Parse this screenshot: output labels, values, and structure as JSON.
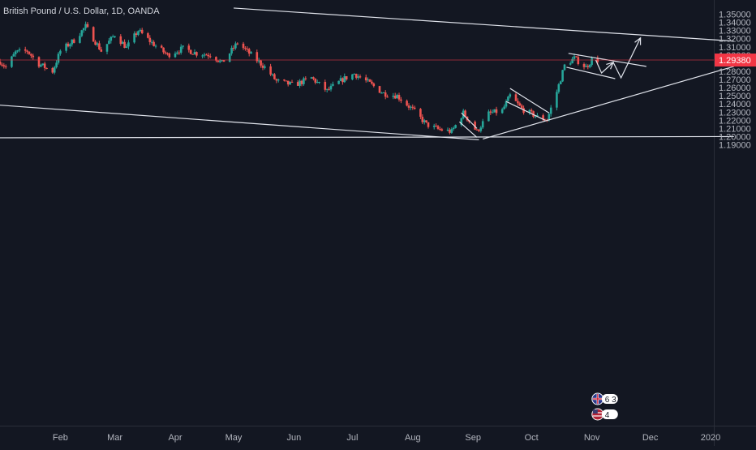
{
  "header": {
    "title": "British Pound / U.S. Dollar, 1D, OANDA"
  },
  "price_axis": {
    "ticks": [
      "1.35000",
      "1.34000",
      "1.33000",
      "1.32000",
      "1.31000",
      "1.30000",
      "1.29000",
      "1.28000",
      "1.27000",
      "1.26000",
      "1.25000",
      "1.24000",
      "1.23000",
      "1.22000",
      "1.21000",
      "1.20000",
      "1.19000"
    ]
  },
  "time_axis": {
    "ticks": [
      "Feb",
      "Mar",
      "Apr",
      "May",
      "Jun",
      "Jul",
      "Aug",
      "Sep",
      "Oct",
      "Nov",
      "Dec",
      "2020"
    ]
  },
  "last_price": {
    "label": "1.29380",
    "value": 1.2938
  },
  "events": [
    {
      "flag": "uk-flag-icon",
      "count": "6 3"
    },
    {
      "flag": "us-flag-icon",
      "count": "4"
    }
  ],
  "colors": {
    "background": "#131722",
    "up": "#26a69a",
    "down": "#ef5350",
    "drawing": "#e0e3eb",
    "last_price": "#f23645"
  },
  "chart_data": {
    "type": "candlestick",
    "title": "British Pound / U.S. Dollar, 1D, OANDA",
    "ylim": [
      1.183,
      1.355
    ],
    "xlim": [
      "2019-01-01",
      "2020-01-13"
    ],
    "checkpoints": [
      [
        "2019-01-01",
        1.292
      ],
      [
        "2019-01-04",
        1.285
      ],
      [
        "2019-01-09",
        1.303
      ],
      [
        "2019-01-15",
        1.305
      ],
      [
        "2019-01-21",
        1.289
      ],
      [
        "2019-01-28",
        1.28
      ],
      [
        "2019-02-01",
        1.305
      ],
      [
        "2019-02-08",
        1.318
      ],
      [
        "2019-02-14",
        1.335
      ],
      [
        "2019-02-22",
        1.305
      ],
      [
        "2019-03-01",
        1.325
      ],
      [
        "2019-03-07",
        1.309
      ],
      [
        "2019-03-13",
        1.33
      ],
      [
        "2019-03-20",
        1.315
      ],
      [
        "2019-03-28",
        1.3
      ],
      [
        "2019-04-05",
        1.308
      ],
      [
        "2019-04-12",
        1.302
      ],
      [
        "2019-04-20",
        1.3
      ],
      [
        "2019-04-25",
        1.29
      ],
      [
        "2019-05-03",
        1.315
      ],
      [
        "2019-05-10",
        1.3
      ],
      [
        "2019-05-17",
        1.285
      ],
      [
        "2019-05-23",
        1.268
      ],
      [
        "2019-06-01",
        1.263
      ],
      [
        "2019-06-10",
        1.272
      ],
      [
        "2019-06-18",
        1.256
      ],
      [
        "2019-06-26",
        1.27
      ],
      [
        "2019-07-02",
        1.277
      ],
      [
        "2019-07-10",
        1.265
      ],
      [
        "2019-07-17",
        1.253
      ],
      [
        "2019-07-24",
        1.25
      ],
      [
        "2019-08-01",
        1.233
      ],
      [
        "2019-08-08",
        1.215
      ],
      [
        "2019-08-14",
        1.209
      ],
      [
        "2019-08-21",
        1.206
      ],
      [
        "2019-08-27",
        1.229
      ],
      [
        "2019-09-03",
        1.206
      ],
      [
        "2019-09-09",
        1.228
      ],
      [
        "2019-09-16",
        1.232
      ],
      [
        "2019-09-20",
        1.25
      ],
      [
        "2019-09-26",
        1.234
      ],
      [
        "2019-10-04",
        1.224
      ],
      [
        "2019-10-09",
        1.221
      ],
      [
        "2019-10-14",
        1.255
      ],
      [
        "2019-10-18",
        1.287
      ],
      [
        "2019-10-23",
        1.296
      ],
      [
        "2019-10-29",
        1.285
      ],
      [
        "2019-11-01",
        1.294
      ],
      [
        "2019-11-04",
        1.2938
      ]
    ],
    "drawings": [
      {
        "name": "upper-channel-line",
        "points": [
          [
            "2019-05-01",
            1.3575
          ],
          [
            "2020-01-13",
            1.317
          ]
        ]
      },
      {
        "name": "lower-channel-line",
        "points": [
          [
            "2019-01-01",
            1.2385
          ],
          [
            "2019-09-04",
            1.196
          ]
        ]
      },
      {
        "name": "horizontal-support-line",
        "points": [
          [
            "2019-01-01",
            1.1985
          ],
          [
            "2020-01-13",
            1.2
          ]
        ]
      },
      {
        "name": "uptrend-line",
        "points": [
          [
            "2019-09-06",
            1.197
          ],
          [
            "2020-01-13",
            1.286
          ]
        ]
      },
      {
        "name": "flag-1-upper",
        "points": [
          [
            "2019-08-26",
            1.229
          ],
          [
            "2019-09-03",
            1.21
          ]
        ]
      },
      {
        "name": "flag-1-lower",
        "points": [
          [
            "2019-08-25",
            1.218
          ],
          [
            "2019-09-03",
            1.199
          ]
        ]
      },
      {
        "name": "flag-2-upper",
        "points": [
          [
            "2019-09-20",
            1.259
          ],
          [
            "2019-10-10",
            1.229
          ]
        ]
      },
      {
        "name": "flag-2-lower",
        "points": [
          [
            "2019-09-18",
            1.243
          ],
          [
            "2019-10-08",
            1.22
          ]
        ]
      },
      {
        "name": "flag-3-upper",
        "points": [
          [
            "2019-10-20",
            1.302
          ],
          [
            "2019-11-29",
            1.286
          ]
        ]
      },
      {
        "name": "flag-3-lower",
        "points": [
          [
            "2019-10-19",
            1.285
          ],
          [
            "2019-11-13",
            1.271
          ]
        ]
      }
    ],
    "arrow_paths": [
      {
        "name": "projection-zigzag-1",
        "points": [
          [
            "2019-11-03",
            1.294
          ],
          [
            "2019-11-06",
            1.278
          ],
          [
            "2019-11-12",
            1.291
          ]
        ]
      },
      {
        "name": "projection-zigzag-2",
        "points": [
          [
            "2019-11-12",
            1.291
          ],
          [
            "2019-11-16",
            1.272
          ],
          [
            "2019-11-26",
            1.321
          ]
        ]
      }
    ]
  }
}
